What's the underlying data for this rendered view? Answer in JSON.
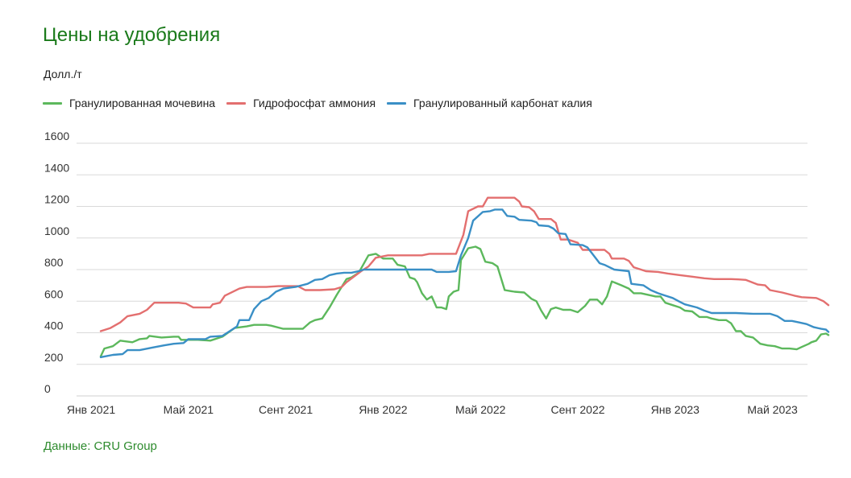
{
  "chart_data": {
    "type": "line",
    "title": "Цены на удобрения",
    "ylabel": "Долл./т",
    "source": "Данные: CRU Group",
    "ylim": [
      0,
      1600
    ],
    "yticks": [
      0,
      200,
      400,
      600,
      800,
      1000,
      1200,
      1400,
      1600
    ],
    "xlim": [
      0,
      29.2
    ],
    "xticks": [
      {
        "label": "Янв 2021",
        "x": 0
      },
      {
        "label": "Май 2021",
        "x": 4
      },
      {
        "label": "Сент 2021",
        "x": 8
      },
      {
        "label": "Янв 2022",
        "x": 12
      },
      {
        "label": "Май 2022",
        "x": 16
      },
      {
        "label": "Сент 2022",
        "x": 20
      },
      {
        "label": "Янв 2023",
        "x": 24
      },
      {
        "label": "Май 2023",
        "x": 28
      }
    ],
    "grid": true,
    "legend_position": "top-left",
    "series": [
      {
        "name": "Гранулированная мочевина",
        "color": "#5cb85c",
        "points": [
          [
            0,
            250
          ],
          [
            0.15,
            300
          ],
          [
            0.5,
            315
          ],
          [
            0.8,
            350
          ],
          [
            1.3,
            340
          ],
          [
            1.6,
            360
          ],
          [
            1.9,
            365
          ],
          [
            2,
            380
          ],
          [
            2.5,
            370
          ],
          [
            3,
            375
          ],
          [
            3.2,
            375
          ],
          [
            3.3,
            355
          ],
          [
            3.6,
            355
          ],
          [
            4,
            355
          ],
          [
            4.5,
            350
          ],
          [
            5,
            375
          ],
          [
            5.5,
            430
          ],
          [
            6,
            440
          ],
          [
            6.3,
            450
          ],
          [
            6.8,
            450
          ],
          [
            7,
            445
          ],
          [
            7.5,
            425
          ],
          [
            7.8,
            425
          ],
          [
            8,
            425
          ],
          [
            8.3,
            425
          ],
          [
            8.6,
            465
          ],
          [
            8.8,
            480
          ],
          [
            9.1,
            490
          ],
          [
            9.4,
            560
          ],
          [
            9.7,
            640
          ],
          [
            10.1,
            740
          ],
          [
            10.3,
            750
          ],
          [
            10.6,
            780
          ],
          [
            11,
            890
          ],
          [
            11.3,
            900
          ],
          [
            11.6,
            870
          ],
          [
            11.9,
            870
          ],
          [
            12,
            870
          ],
          [
            12.2,
            830
          ],
          [
            12.5,
            820
          ],
          [
            12.7,
            750
          ],
          [
            12.9,
            740
          ],
          [
            13,
            720
          ],
          [
            13.2,
            650
          ],
          [
            13.4,
            610
          ],
          [
            13.6,
            630
          ],
          [
            13.8,
            560
          ],
          [
            14,
            560
          ],
          [
            14.2,
            550
          ],
          [
            14.3,
            630
          ],
          [
            14.5,
            660
          ],
          [
            14.7,
            670
          ],
          [
            14.8,
            860
          ],
          [
            15.1,
            935
          ],
          [
            15.4,
            945
          ],
          [
            15.6,
            930
          ],
          [
            15.8,
            850
          ],
          [
            16.1,
            840
          ],
          [
            16.3,
            820
          ],
          [
            16.6,
            670
          ],
          [
            17,
            660
          ],
          [
            17.4,
            655
          ],
          [
            17.7,
            615
          ],
          [
            17.9,
            600
          ],
          [
            18.1,
            540
          ],
          [
            18.3,
            490
          ],
          [
            18.5,
            550
          ],
          [
            18.7,
            560
          ],
          [
            19,
            545
          ],
          [
            19.3,
            545
          ],
          [
            19.6,
            530
          ],
          [
            19.9,
            570
          ],
          [
            20.1,
            610
          ],
          [
            20.4,
            610
          ],
          [
            20.6,
            580
          ],
          [
            20.8,
            630
          ],
          [
            21,
            725
          ],
          [
            21.4,
            700
          ],
          [
            21.7,
            680
          ],
          [
            21.9,
            650
          ],
          [
            22.2,
            650
          ],
          [
            22.5,
            640
          ],
          [
            22.8,
            630
          ],
          [
            23,
            630
          ],
          [
            23.2,
            590
          ],
          [
            23.5,
            575
          ],
          [
            23.8,
            560
          ],
          [
            24,
            540
          ],
          [
            24.3,
            535
          ],
          [
            24.6,
            500
          ],
          [
            24.9,
            500
          ],
          [
            25.1,
            490
          ],
          [
            25.4,
            480
          ],
          [
            25.7,
            480
          ],
          [
            25.9,
            460
          ],
          [
            26.1,
            410
          ],
          [
            26.3,
            410
          ],
          [
            26.5,
            380
          ],
          [
            26.8,
            370
          ],
          [
            27.1,
            330
          ],
          [
            27.4,
            320
          ],
          [
            27.7,
            315
          ],
          [
            28,
            300
          ],
          [
            28.3,
            300
          ],
          [
            28.6,
            295
          ],
          [
            28.8,
            310
          ],
          [
            29.1,
            330
          ],
          [
            29.2,
            340
          ],
          [
            29.4,
            350
          ],
          [
            29.6,
            390
          ],
          [
            29.8,
            395
          ],
          [
            29.9,
            385
          ]
        ]
      },
      {
        "name": "Гидрофосфат аммония",
        "color": "#e36f6f",
        "points": [
          [
            0,
            410
          ],
          [
            0.4,
            430
          ],
          [
            0.8,
            465
          ],
          [
            1.1,
            505
          ],
          [
            1.6,
            520
          ],
          [
            1.9,
            545
          ],
          [
            2.2,
            590
          ],
          [
            2.5,
            590
          ],
          [
            3.2,
            590
          ],
          [
            3.5,
            585
          ],
          [
            3.8,
            560
          ],
          [
            4,
            560
          ],
          [
            4.5,
            560
          ],
          [
            4.6,
            580
          ],
          [
            4.9,
            590
          ],
          [
            5.1,
            635
          ],
          [
            5.7,
            680
          ],
          [
            6,
            690
          ],
          [
            6.3,
            690
          ],
          [
            6.8,
            690
          ],
          [
            7.3,
            695
          ],
          [
            7.8,
            695
          ],
          [
            8.1,
            695
          ],
          [
            8.4,
            670
          ],
          [
            9,
            670
          ],
          [
            9.6,
            675
          ],
          [
            9.9,
            690
          ],
          [
            10.1,
            720
          ],
          [
            10.7,
            790
          ],
          [
            11,
            820
          ],
          [
            11.3,
            875
          ],
          [
            11.8,
            890
          ],
          [
            12.4,
            890
          ],
          [
            13.2,
            890
          ],
          [
            13.5,
            900
          ],
          [
            14,
            900
          ],
          [
            14.6,
            900
          ],
          [
            14.9,
            1020
          ],
          [
            15.1,
            1170
          ],
          [
            15.5,
            1200
          ],
          [
            15.7,
            1200
          ],
          [
            15.9,
            1255
          ],
          [
            16.2,
            1255
          ],
          [
            16.5,
            1255
          ],
          [
            17,
            1255
          ],
          [
            17.2,
            1230
          ],
          [
            17.3,
            1200
          ],
          [
            17.6,
            1195
          ],
          [
            17.8,
            1170
          ],
          [
            18,
            1120
          ],
          [
            18.5,
            1120
          ],
          [
            18.7,
            1095
          ],
          [
            18.9,
            990
          ],
          [
            19.2,
            990
          ],
          [
            19.4,
            980
          ],
          [
            19.6,
            970
          ],
          [
            19.8,
            925
          ],
          [
            20.3,
            925
          ],
          [
            20.7,
            925
          ],
          [
            20.9,
            900
          ],
          [
            21,
            870
          ],
          [
            21.5,
            870
          ],
          [
            21.7,
            855
          ],
          [
            21.9,
            815
          ],
          [
            22.2,
            800
          ],
          [
            22.4,
            790
          ],
          [
            22.9,
            785
          ],
          [
            23.3,
            775
          ],
          [
            23.8,
            765
          ],
          [
            24.3,
            755
          ],
          [
            24.8,
            745
          ],
          [
            25.2,
            740
          ],
          [
            25.9,
            740
          ],
          [
            26.2,
            738
          ],
          [
            26.5,
            735
          ],
          [
            27,
            705
          ],
          [
            27.3,
            700
          ],
          [
            27.5,
            670
          ],
          [
            28,
            655
          ],
          [
            28.5,
            635
          ],
          [
            28.8,
            625
          ],
          [
            29.4,
            620
          ],
          [
            29.7,
            600
          ],
          [
            29.9,
            575
          ]
        ]
      },
      {
        "name": "Гранулированный карбонат калия",
        "color": "#3a8fc6",
        "points": [
          [
            0,
            245
          ],
          [
            0.5,
            260
          ],
          [
            0.9,
            265
          ],
          [
            1.1,
            290
          ],
          [
            1.6,
            290
          ],
          [
            2.1,
            305
          ],
          [
            2.6,
            320
          ],
          [
            3,
            330
          ],
          [
            3.4,
            335
          ],
          [
            3.6,
            360
          ],
          [
            4,
            360
          ],
          [
            4.3,
            360
          ],
          [
            4.5,
            375
          ],
          [
            5,
            380
          ],
          [
            5.2,
            400
          ],
          [
            5.6,
            440
          ],
          [
            5.7,
            480
          ],
          [
            6.1,
            480
          ],
          [
            6.3,
            550
          ],
          [
            6.6,
            600
          ],
          [
            6.9,
            620
          ],
          [
            7.2,
            660
          ],
          [
            7.5,
            680
          ],
          [
            8,
            690
          ],
          [
            8.5,
            710
          ],
          [
            8.8,
            735
          ],
          [
            9.1,
            740
          ],
          [
            9.4,
            765
          ],
          [
            9.7,
            775
          ],
          [
            10,
            780
          ],
          [
            10.3,
            780
          ],
          [
            10.6,
            790
          ],
          [
            10.8,
            800
          ],
          [
            11.2,
            800
          ],
          [
            11.7,
            800
          ],
          [
            12.2,
            800
          ],
          [
            12.7,
            800
          ],
          [
            13.2,
            800
          ],
          [
            13.6,
            800
          ],
          [
            13.8,
            785
          ],
          [
            14.3,
            785
          ],
          [
            14.6,
            790
          ],
          [
            14.8,
            890
          ],
          [
            15.1,
            1000
          ],
          [
            15.3,
            1110
          ],
          [
            15.7,
            1165
          ],
          [
            16,
            1170
          ],
          [
            16.2,
            1180
          ],
          [
            16.5,
            1180
          ],
          [
            16.7,
            1140
          ],
          [
            17,
            1135
          ],
          [
            17.2,
            1115
          ],
          [
            17.7,
            1110
          ],
          [
            17.9,
            1100
          ],
          [
            18,
            1080
          ],
          [
            18.4,
            1075
          ],
          [
            18.6,
            1060
          ],
          [
            18.8,
            1030
          ],
          [
            19.1,
            1025
          ],
          [
            19.3,
            960
          ],
          [
            19.8,
            955
          ],
          [
            20,
            940
          ],
          [
            20.5,
            840
          ],
          [
            20.7,
            830
          ],
          [
            21.1,
            800
          ],
          [
            21.7,
            790
          ],
          [
            21.8,
            710
          ],
          [
            22.3,
            700
          ],
          [
            22.6,
            670
          ],
          [
            22.9,
            650
          ],
          [
            23.2,
            635
          ],
          [
            23.5,
            620
          ],
          [
            23.8,
            595
          ],
          [
            24,
            580
          ],
          [
            24.5,
            560
          ],
          [
            24.8,
            540
          ],
          [
            25.1,
            525
          ],
          [
            26.1,
            525
          ],
          [
            26.8,
            520
          ],
          [
            27.5,
            520
          ],
          [
            27.8,
            505
          ],
          [
            28.1,
            475
          ],
          [
            28.4,
            475
          ],
          [
            28.7,
            465
          ],
          [
            29,
            455
          ],
          [
            29.3,
            435
          ],
          [
            29.6,
            425
          ],
          [
            29.8,
            420
          ],
          [
            29.9,
            405
          ]
        ]
      }
    ]
  }
}
